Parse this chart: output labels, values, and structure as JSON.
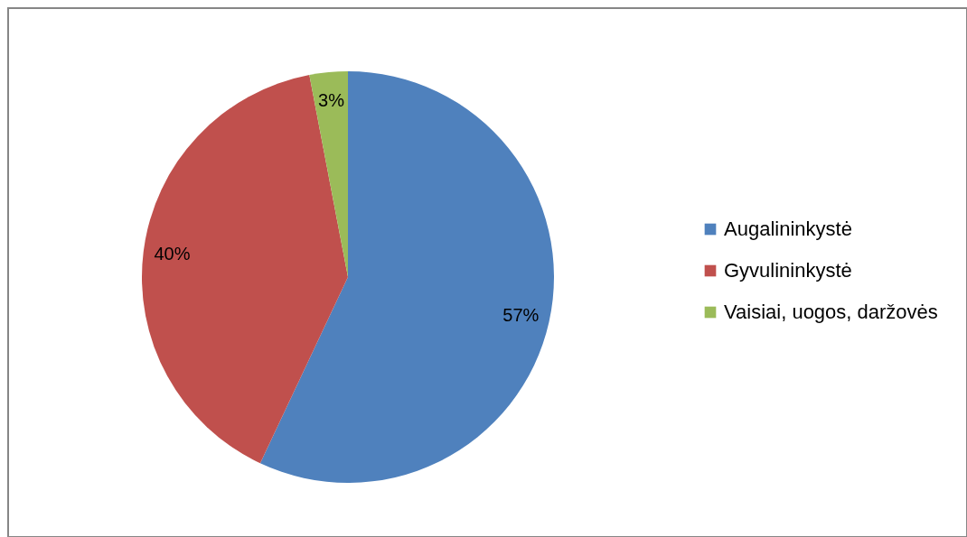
{
  "chart_data": {
    "type": "pie",
    "categories": [
      "Augalininkystė",
      "Gyvulininkystė",
      "Vaisiai, uogos, daržovės"
    ],
    "values": [
      57,
      40,
      3
    ],
    "colors": [
      "#4f81bd",
      "#c0504d",
      "#9bbb59"
    ],
    "value_labels": [
      "57%",
      "40%",
      "3%"
    ],
    "legend": "right"
  }
}
